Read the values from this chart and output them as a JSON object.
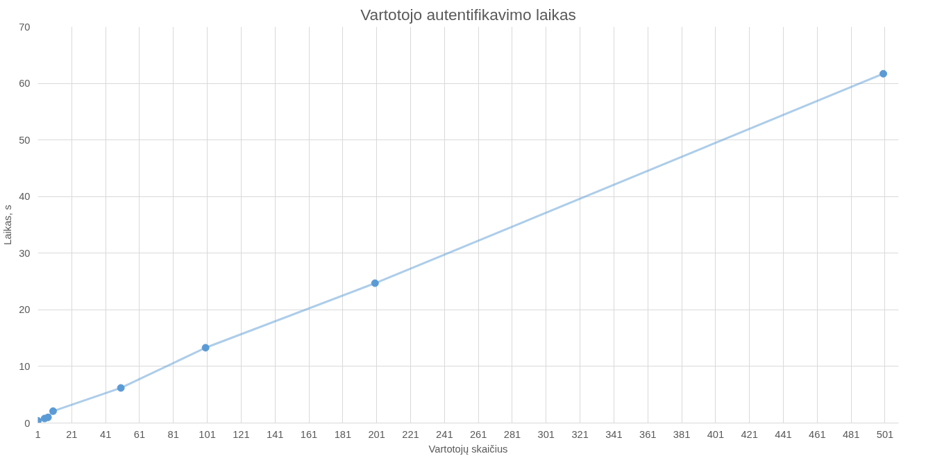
{
  "chart_data": {
    "type": "line",
    "title": "Vartotojo autentifikavimo laikas",
    "xlabel": "Vartotojų skaičius",
    "ylabel": "Laikas, s",
    "x": [
      1,
      5,
      7,
      10,
      50,
      100,
      200,
      500
    ],
    "series": [
      {
        "color": "#5b9bd5",
        "values": [
          0.4,
          0.8,
          1.0,
          2.1,
          6.2,
          13.3,
          24.7,
          61.7
        ]
      }
    ],
    "xlim": [
      1,
      509
    ],
    "xticks": [
      1,
      21,
      41,
      61,
      81,
      101,
      121,
      141,
      161,
      181,
      201,
      221,
      241,
      261,
      281,
      301,
      321,
      341,
      361,
      381,
      401,
      421,
      441,
      461,
      481,
      501
    ],
    "ylim": [
      0,
      70
    ],
    "yticks": [
      0,
      10,
      20,
      30,
      40,
      50,
      60,
      70
    ],
    "grid": true,
    "marker": "circle",
    "line_style": "solid"
  }
}
